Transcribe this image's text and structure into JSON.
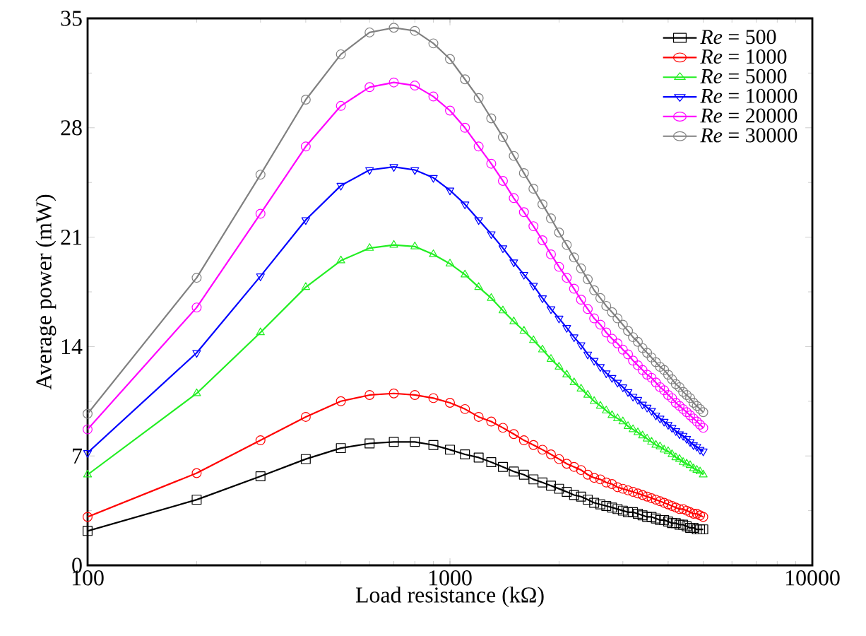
{
  "chart_data": {
    "type": "line",
    "xlabel": "Load resistance (kΩ)",
    "ylabel": "Average power (mW)",
    "log": "x",
    "xlim": [
      100,
      10000
    ],
    "xticks": [
      100,
      1000,
      10000
    ],
    "ylim": [
      0,
      35
    ],
    "yticks": [
      0,
      7,
      14,
      21,
      28,
      35
    ],
    "grid": false,
    "legend": "top right",
    "line_style": "solid",
    "x": [
      100,
      200,
      300,
      400,
      500,
      600,
      700,
      800,
      900,
      1000,
      1100,
      1200,
      1300,
      1400,
      1500,
      1600,
      1700,
      1800,
      1900,
      2000,
      2100,
      2200,
      2300,
      2400,
      2500,
      2600,
      2700,
      2800,
      2900,
      3000,
      3100,
      3200,
      3300,
      3400,
      3500,
      3600,
      3700,
      3800,
      3900,
      4000,
      4100,
      4200,
      4300,
      4400,
      4500,
      4600,
      4700,
      4800,
      4900,
      5000
    ],
    "series": [
      {
        "name": "*Re* = 500",
        "color": "#000000",
        "marker": "square",
        "values": [
          2.2,
          4.2,
          5.7,
          6.8,
          7.5,
          7.8,
          7.9,
          7.9,
          7.7,
          7.4,
          7.1,
          6.9,
          6.6,
          6.3,
          6.0,
          5.8,
          5.5,
          5.3,
          5.1,
          4.9,
          4.7,
          4.5,
          4.4,
          4.2,
          4.0,
          3.9,
          3.8,
          3.7,
          3.6,
          3.5,
          3.4,
          3.4,
          3.3,
          3.2,
          3.1,
          3.1,
          3.0,
          2.9,
          2.9,
          2.8,
          2.7,
          2.7,
          2.6,
          2.6,
          2.5,
          2.4,
          2.4,
          2.3,
          2.3,
          2.3
        ]
      },
      {
        "name": "*Re* = 1000",
        "color": "#ff0000",
        "marker": "circle",
        "values": [
          3.1,
          5.9,
          8.0,
          9.5,
          10.5,
          10.9,
          11.0,
          10.9,
          10.7,
          10.4,
          10.0,
          9.5,
          9.2,
          8.8,
          8.4,
          8.0,
          7.7,
          7.4,
          7.1,
          6.8,
          6.5,
          6.3,
          6.1,
          5.8,
          5.6,
          5.5,
          5.3,
          5.2,
          5.0,
          4.9,
          4.8,
          4.7,
          4.6,
          4.5,
          4.4,
          4.3,
          4.2,
          4.1,
          4.0,
          3.9,
          3.8,
          3.7,
          3.6,
          3.6,
          3.5,
          3.4,
          3.3,
          3.3,
          3.2,
          3.1
        ]
      },
      {
        "name": "*Re* = 5000",
        "color": "#22ee22",
        "marker": "triangle",
        "values": [
          5.8,
          11.0,
          14.9,
          17.8,
          19.5,
          20.3,
          20.5,
          20.4,
          19.9,
          19.3,
          18.6,
          17.8,
          17.1,
          16.3,
          15.6,
          15.0,
          14.4,
          13.8,
          13.2,
          12.7,
          12.2,
          11.7,
          11.3,
          10.9,
          10.5,
          10.2,
          9.9,
          9.6,
          9.4,
          9.2,
          8.9,
          8.7,
          8.5,
          8.3,
          8.1,
          7.9,
          7.7,
          7.6,
          7.4,
          7.3,
          7.1,
          6.9,
          6.8,
          6.6,
          6.5,
          6.4,
          6.2,
          6.1,
          6.0,
          5.8
        ]
      },
      {
        "name": "*Re* = 10000",
        "color": "#0000ff",
        "marker": "triangle-down",
        "values": [
          7.2,
          13.6,
          18.5,
          22.1,
          24.3,
          25.3,
          25.5,
          25.3,
          24.8,
          24.0,
          23.1,
          22.1,
          21.2,
          20.3,
          19.4,
          18.6,
          17.9,
          17.1,
          16.4,
          15.8,
          15.2,
          14.6,
          14.1,
          13.5,
          13.1,
          12.7,
          12.3,
          12.0,
          11.7,
          11.4,
          11.1,
          10.8,
          10.6,
          10.3,
          10.1,
          9.9,
          9.6,
          9.4,
          9.2,
          9.0,
          8.8,
          8.6,
          8.4,
          8.3,
          8.1,
          7.9,
          7.7,
          7.6,
          7.4,
          7.3
        ]
      },
      {
        "name": "*Re* = 20000",
        "color": "#ff00ff",
        "marker": "circle",
        "values": [
          8.7,
          16.5,
          22.5,
          26.8,
          29.4,
          30.6,
          30.9,
          30.7,
          30.0,
          29.1,
          28.0,
          26.8,
          25.7,
          24.6,
          23.5,
          22.6,
          21.7,
          20.8,
          19.9,
          19.1,
          18.4,
          17.7,
          17.0,
          16.4,
          15.8,
          15.4,
          14.9,
          14.5,
          14.2,
          13.8,
          13.5,
          13.1,
          12.8,
          12.5,
          12.2,
          12.0,
          11.7,
          11.4,
          11.2,
          10.9,
          10.7,
          10.4,
          10.2,
          10.0,
          9.8,
          9.6,
          9.4,
          9.2,
          9.0,
          8.8
        ]
      },
      {
        "name": "*Re* = 30000",
        "color": "#808080",
        "marker": "circle",
        "values": [
          9.7,
          18.4,
          25.0,
          29.8,
          32.7,
          34.1,
          34.4,
          34.2,
          33.4,
          32.4,
          31.1,
          29.9,
          28.6,
          27.4,
          26.2,
          25.1,
          24.1,
          23.1,
          22.2,
          21.3,
          20.5,
          19.7,
          19.0,
          18.3,
          17.6,
          17.1,
          16.6,
          16.2,
          15.8,
          15.4,
          15.0,
          14.6,
          14.3,
          13.9,
          13.6,
          13.3,
          13.0,
          12.7,
          12.5,
          12.2,
          11.9,
          11.6,
          11.4,
          11.1,
          10.9,
          10.7,
          10.4,
          10.2,
          10.0,
          9.8
        ]
      }
    ]
  }
}
